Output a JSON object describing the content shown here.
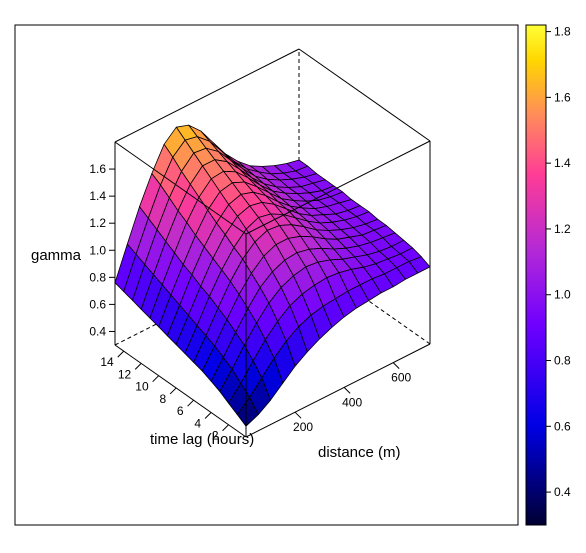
{
  "chart_data": {
    "type": "surface-3d",
    "title": "",
    "zlabel": "gamma",
    "xlabel": "distance (m)",
    "ylabel": "time lag (hours)",
    "x_ticks": [
      200,
      400,
      600
    ],
    "y_ticks": [
      2,
      4,
      6,
      8,
      10,
      12,
      14
    ],
    "z_ticks": [
      0.4,
      0.6,
      0.8,
      1.0,
      1.2,
      1.4,
      1.6
    ],
    "z_tick_labels": [
      "0.4",
      "0.6",
      "0.8",
      "1.0",
      "1.2",
      "1.4",
      "1.6"
    ],
    "xlim": [
      0,
      750
    ],
    "ylim": [
      0,
      15
    ],
    "zlim": [
      0.3,
      1.8
    ],
    "colorbar": {
      "ticks": [
        0.4,
        0.6,
        0.8,
        1.0,
        1.2,
        1.4,
        1.6,
        1.8
      ],
      "labels": [
        "0.4",
        "0.6",
        "0.8",
        "1.0",
        "1.2",
        "1.4",
        "1.6",
        "1.8"
      ],
      "range": [
        0.3,
        1.82
      ],
      "colors": [
        "#000033",
        "#0000e6",
        "#6f00ff",
        "#b429d6",
        "#ff3c96",
        "#ff8c5a",
        "#ffd700",
        "#ffff38"
      ]
    },
    "surface": {
      "x": [
        0,
        50,
        100,
        150,
        200,
        250,
        300,
        350,
        400,
        450,
        500,
        550,
        600,
        650,
        700,
        750
      ],
      "y": [
        0,
        1,
        2,
        3,
        4,
        5,
        6,
        7,
        8,
        9,
        10,
        11,
        12,
        13,
        14,
        15
      ],
      "z_note": "gamma values sampled on the x/y grid",
      "z": [
        [
          0.38,
          0.42,
          0.48,
          0.56,
          0.64,
          0.7,
          0.75,
          0.79,
          0.82,
          0.84,
          0.85,
          0.86,
          0.86,
          0.87,
          0.87,
          0.87
        ],
        [
          0.42,
          0.5,
          0.6,
          0.7,
          0.78,
          0.84,
          0.88,
          0.9,
          0.91,
          0.92,
          0.92,
          0.92,
          0.91,
          0.91,
          0.91,
          0.9
        ],
        [
          0.46,
          0.56,
          0.68,
          0.79,
          0.88,
          0.95,
          0.99,
          1.01,
          1.02,
          1.01,
          0.99,
          0.96,
          0.94,
          0.93,
          0.92,
          0.92
        ],
        [
          0.5,
          0.62,
          0.75,
          0.87,
          0.97,
          1.04,
          1.08,
          1.1,
          1.09,
          1.06,
          1.02,
          0.99,
          0.96,
          0.94,
          0.93,
          0.93
        ],
        [
          0.53,
          0.66,
          0.8,
          0.93,
          1.04,
          1.11,
          1.15,
          1.16,
          1.14,
          1.1,
          1.05,
          1.01,
          0.98,
          0.96,
          0.95,
          0.94
        ],
        [
          0.56,
          0.7,
          0.85,
          0.99,
          1.1,
          1.18,
          1.22,
          1.22,
          1.19,
          1.14,
          1.08,
          1.03,
          1.0,
          0.97,
          0.96,
          0.95
        ],
        [
          0.58,
          0.73,
          0.89,
          1.04,
          1.16,
          1.24,
          1.28,
          1.27,
          1.23,
          1.17,
          1.1,
          1.05,
          1.01,
          0.98,
          0.96,
          0.95
        ],
        [
          0.6,
          0.76,
          0.93,
          1.08,
          1.2,
          1.29,
          1.33,
          1.31,
          1.26,
          1.19,
          1.12,
          1.06,
          1.02,
          0.99,
          0.97,
          0.96
        ],
        [
          0.62,
          0.79,
          0.96,
          1.12,
          1.25,
          1.34,
          1.37,
          1.35,
          1.29,
          1.21,
          1.13,
          1.07,
          1.03,
          0.99,
          0.97,
          0.96
        ],
        [
          0.64,
          0.82,
          1.0,
          1.16,
          1.29,
          1.38,
          1.41,
          1.38,
          1.31,
          1.22,
          1.14,
          1.08,
          1.03,
          1.0,
          0.98,
          0.96
        ],
        [
          0.66,
          0.85,
          1.03,
          1.2,
          1.34,
          1.43,
          1.45,
          1.41,
          1.33,
          1.24,
          1.15,
          1.09,
          1.04,
          1.0,
          0.98,
          0.97
        ],
        [
          0.68,
          0.88,
          1.07,
          1.25,
          1.39,
          1.48,
          1.49,
          1.44,
          1.35,
          1.25,
          1.16,
          1.1,
          1.05,
          1.01,
          0.98,
          0.97
        ],
        [
          0.7,
          0.91,
          1.11,
          1.29,
          1.44,
          1.53,
          1.53,
          1.47,
          1.37,
          1.26,
          1.17,
          1.1,
          1.05,
          1.01,
          0.99,
          0.97
        ],
        [
          0.72,
          0.94,
          1.15,
          1.34,
          1.49,
          1.58,
          1.57,
          1.5,
          1.39,
          1.28,
          1.18,
          1.11,
          1.06,
          1.02,
          0.99,
          0.97
        ],
        [
          0.74,
          0.97,
          1.19,
          1.39,
          1.55,
          1.63,
          1.61,
          1.53,
          1.41,
          1.29,
          1.19,
          1.12,
          1.06,
          1.02,
          0.99,
          0.98
        ],
        [
          0.76,
          1.0,
          1.23,
          1.43,
          1.6,
          1.68,
          1.65,
          1.56,
          1.43,
          1.3,
          1.2,
          1.12,
          1.07,
          1.03,
          1.0,
          0.98
        ]
      ]
    }
  }
}
